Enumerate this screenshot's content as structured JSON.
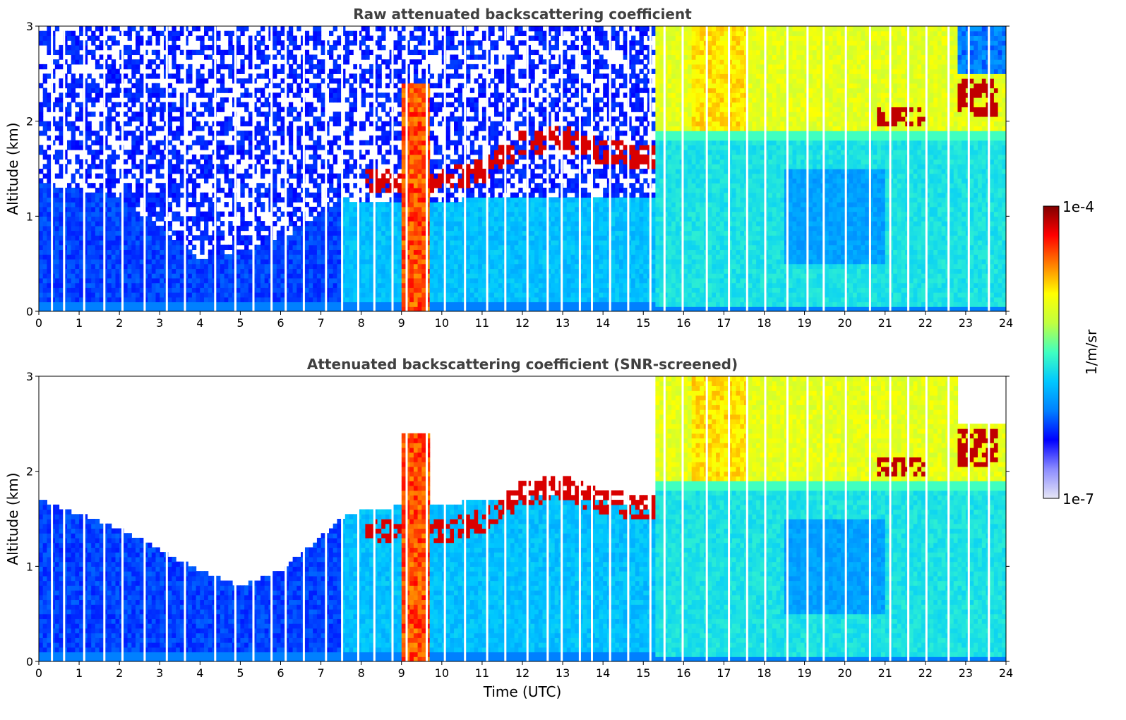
{
  "chart_data": [
    {
      "type": "heatmap",
      "title": "Raw attenuated backscattering coefficient",
      "xlabel": "",
      "ylabel": "Altitude (km)",
      "xlim": [
        0,
        24
      ],
      "ylim": [
        0,
        3
      ],
      "x_ticks": [
        "0",
        "1",
        "2",
        "3",
        "4",
        "5",
        "6",
        "7",
        "8",
        "9",
        "10",
        "11",
        "12",
        "13",
        "14",
        "15",
        "16",
        "17",
        "18",
        "19",
        "20",
        "21",
        "22",
        "23",
        "24"
      ],
      "y_ticks": [
        "0",
        "1",
        "2",
        "3"
      ],
      "snr_screened": false,
      "features": {
        "boundary_layer_top_km": [
          [
            0,
            1.35
          ],
          [
            2,
            1.2
          ],
          [
            4,
            0.55
          ],
          [
            6,
            0.75
          ],
          [
            7.5,
            1.2
          ],
          [
            8,
            1.15
          ],
          [
            13,
            1.2
          ],
          [
            15.3,
            1.2
          ]
        ],
        "cloud_layer": [
          [
            8.2,
            1.25
          ],
          [
            9.5,
            1.2
          ],
          [
            11,
            1.35
          ],
          [
            12,
            1.65
          ],
          [
            13,
            1.7
          ],
          [
            14,
            1.55
          ],
          [
            15,
            1.5
          ]
        ],
        "residual_layer_top_km": [
          [
            15.5,
            1.85
          ],
          [
            23,
            1.85
          ]
        ],
        "high_clouds": [
          [
            21,
            2.0
          ],
          [
            22,
            2.05
          ],
          [
            23.2,
            2.3
          ]
        ]
      }
    },
    {
      "type": "heatmap",
      "title": "Attenuated backscattering coefficient (SNR-screened)",
      "xlabel": "Time (UTC)",
      "ylabel": "Altitude (km)",
      "xlim": [
        0,
        24
      ],
      "ylim": [
        0,
        3
      ],
      "x_ticks": [
        "0",
        "1",
        "2",
        "3",
        "4",
        "5",
        "6",
        "7",
        "8",
        "9",
        "10",
        "11",
        "12",
        "13",
        "14",
        "15",
        "16",
        "17",
        "18",
        "19",
        "20",
        "21",
        "22",
        "23",
        "24"
      ],
      "y_ticks": [
        "0",
        "1",
        "2",
        "3"
      ],
      "snr_screened": true,
      "features": {
        "boundary_layer_top_km": [
          [
            0,
            1.7
          ],
          [
            2,
            1.4
          ],
          [
            4,
            0.95
          ],
          [
            5,
            0.8
          ],
          [
            6,
            0.95
          ],
          [
            7.5,
            1.5
          ],
          [
            8,
            1.6
          ],
          [
            13,
            1.75
          ],
          [
            15.3,
            1.6
          ]
        ],
        "cloud_layer": [
          [
            8.2,
            1.25
          ],
          [
            9.5,
            1.2
          ],
          [
            11,
            1.35
          ],
          [
            12,
            1.65
          ],
          [
            13,
            1.7
          ],
          [
            14,
            1.55
          ],
          [
            15,
            1.5
          ]
        ],
        "residual_layer_top_km": [
          [
            15.5,
            1.85
          ],
          [
            23,
            1.85
          ]
        ],
        "high_clouds": [
          [
            21,
            2.0
          ],
          [
            22,
            2.05
          ],
          [
            23.2,
            2.3
          ]
        ]
      }
    }
  ],
  "colorbar": {
    "label": "1/m/sr",
    "min_label": "1e-7",
    "max_label": "1e-4",
    "range": [
      1e-07,
      0.0001
    ],
    "scale": "log",
    "colormap": [
      "#e6e6f5",
      "#8c8cff",
      "#0000ff",
      "#0080ff",
      "#00c8ff",
      "#40ffc0",
      "#c0ff40",
      "#ffff00",
      "#ff8000",
      "#ff0000",
      "#800000"
    ]
  },
  "data_gap_times_utc": [
    0.3,
    0.6,
    1.1,
    1.6,
    2.05,
    2.6,
    3.15,
    3.6,
    4.35,
    4.85,
    5.3,
    5.75,
    6.1,
    6.55,
    7.1,
    7.5,
    7.9,
    8.3,
    8.75,
    9.1,
    9.6,
    10.05,
    10.55,
    11.1,
    11.55,
    12.1,
    12.6,
    12.95,
    13.4,
    13.7,
    14.15,
    14.6,
    15.15,
    15.5,
    15.95,
    16.55,
    17.1,
    17.55,
    18.0,
    18.55,
    19.05,
    19.45,
    20.0,
    20.6,
    21.1,
    21.55,
    22.0,
    22.55,
    23.05,
    23.55
  ]
}
